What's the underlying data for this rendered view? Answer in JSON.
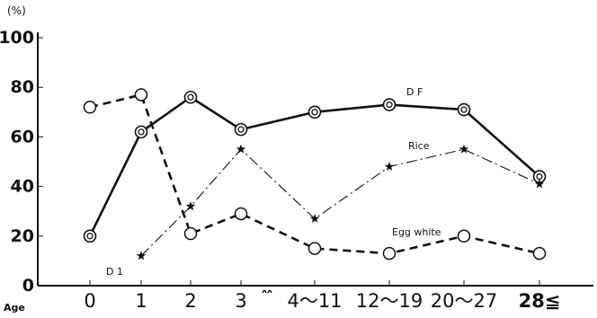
{
  "chart_data": {
    "type": "line",
    "ylabel": "(%)",
    "xlabel": "Age",
    "ylim": [
      0,
      100
    ],
    "yticks": [
      0,
      20,
      40,
      60,
      80,
      100
    ],
    "ytick_labels": [
      "0",
      "20",
      "40",
      "60",
      "80",
      "100"
    ],
    "categories": [
      "0",
      "1",
      "2",
      "3",
      "4～11",
      "12～19",
      "20～27",
      "28≦"
    ],
    "series": [
      {
        "name": "D F",
        "style": "solid",
        "marker": "double-circle",
        "color": "#111111",
        "points": [
          {
            "x": "0",
            "y": 20
          },
          {
            "x": "1",
            "y": 62
          },
          {
            "x": "2",
            "y": 76
          },
          {
            "x": "3",
            "y": 63
          },
          {
            "x": "4～11",
            "y": 70
          },
          {
            "x": "12～19",
            "y": 73
          },
          {
            "x": "20～27",
            "y": 71
          },
          {
            "x": "28≦",
            "y": 44
          }
        ]
      },
      {
        "name": "Rice",
        "style": "dash-dot",
        "marker": "star",
        "color": "#111111",
        "points": [
          {
            "x": "1",
            "y": 12
          },
          {
            "x": "2",
            "y": 32
          },
          {
            "x": "3",
            "y": 55
          },
          {
            "x": "4～11",
            "y": 27
          },
          {
            "x": "12～19",
            "y": 48
          },
          {
            "x": "20～27",
            "y": 55
          },
          {
            "x": "28≦",
            "y": 41
          }
        ]
      },
      {
        "name": "Egg white",
        "style": "dashed",
        "marker": "open-circle",
        "color": "#111111",
        "points": [
          {
            "x": "0",
            "y": 72
          },
          {
            "x": "1",
            "y": 77
          },
          {
            "x": "2",
            "y": 21
          },
          {
            "x": "3",
            "y": 29
          },
          {
            "x": "4～11",
            "y": 15
          },
          {
            "x": "12～19",
            "y": 13
          },
          {
            "x": "20～27",
            "y": 20
          },
          {
            "x": "28≦",
            "y": 13
          }
        ]
      }
    ],
    "annotations": [
      {
        "text": "D 1",
        "x": "1",
        "y": 5
      }
    ],
    "axis_break": "between 3 and 4～11",
    "grid": false,
    "legend": "inline labels"
  }
}
